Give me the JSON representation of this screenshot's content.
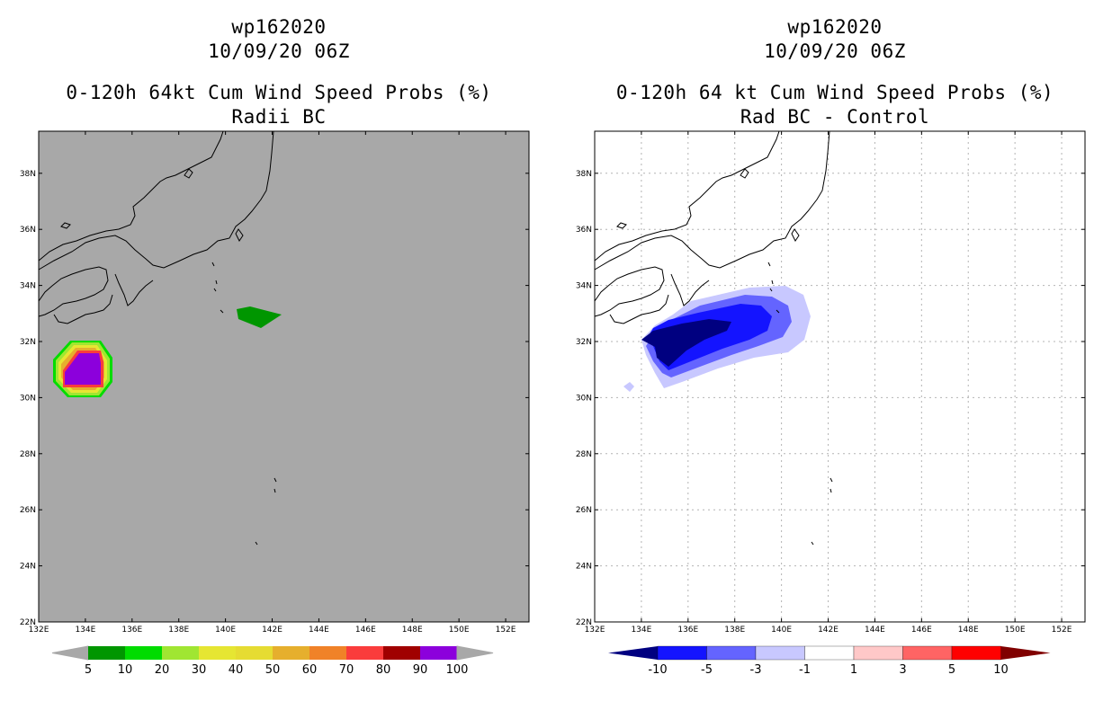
{
  "left_panel": {
    "title": {
      "line1": "wp162020",
      "line2": "10/09/20 06Z",
      "line3": "0-120h 64kt Cum Wind Speed Probs (%)",
      "line4": "Radii BC"
    },
    "colorbar": {
      "labels": [
        "5",
        "10",
        "20",
        "30",
        "40",
        "50",
        "60",
        "70",
        "80",
        "90",
        "100"
      ],
      "colors": [
        "#009600",
        "#00dc00",
        "#a0e632",
        "#e6e632",
        "#e6dc32",
        "#e6af2d",
        "#f08228",
        "#fa3c3c",
        "#a00000",
        "#8c00dc"
      ]
    }
  },
  "right_panel": {
    "title": {
      "line1": "wp162020",
      "line2": "10/09/20 06Z",
      "line3": "0-120h 64 kt Cum Wind Speed Probs (%)",
      "line4": "Rad BC - Control"
    },
    "colorbar": {
      "labels": [
        "-10",
        "-5",
        "-3",
        "-1",
        "1",
        "3",
        "5",
        "10"
      ],
      "colors": [
        "#000080",
        "#1414ff",
        "#6464ff",
        "#c8c8ff",
        "#ffffff",
        "#ffc8c8",
        "#ff6464",
        "#ff0000",
        "#800000"
      ]
    }
  },
  "axes": {
    "lon_labels": [
      "132E",
      "134E",
      "136E",
      "138E",
      "140E",
      "142E",
      "144E",
      "146E",
      "148E",
      "150E",
      "152E"
    ],
    "lat_labels": [
      "22N",
      "24N",
      "26N",
      "28N",
      "30N",
      "32N",
      "34N",
      "36N",
      "38N"
    ]
  },
  "colors": {
    "land_bg": "#a8a8a8",
    "plot_bg_right": "#ffffff"
  }
}
